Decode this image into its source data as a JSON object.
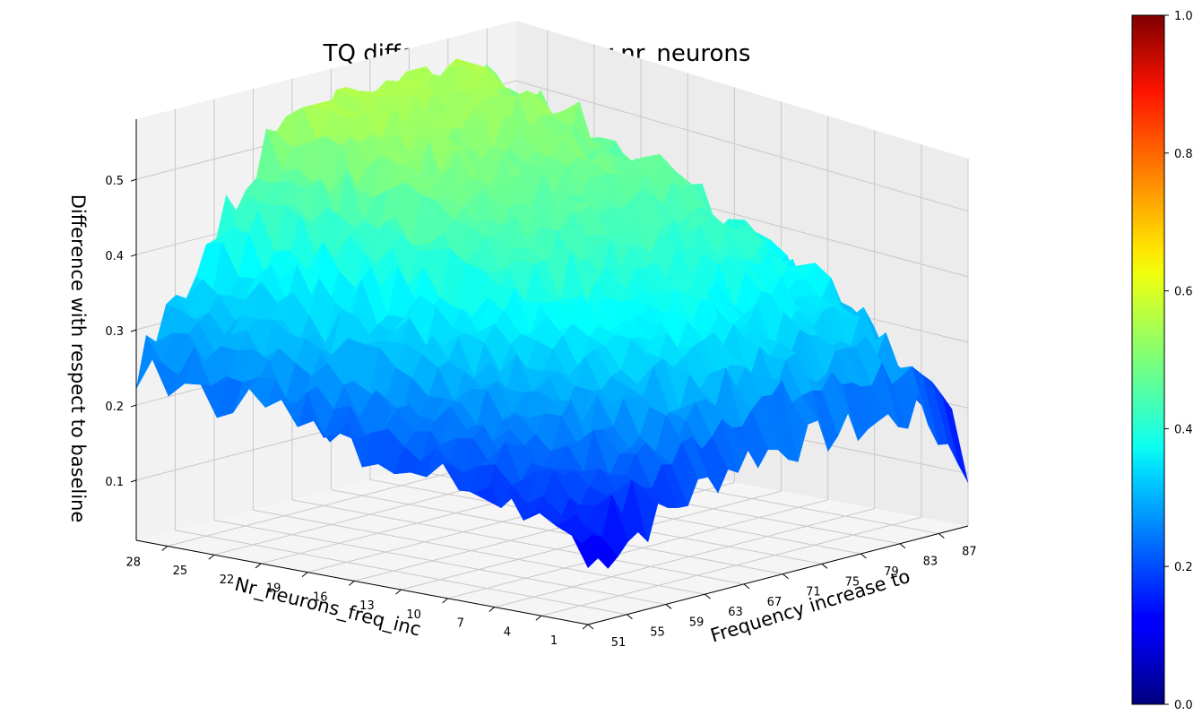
{
  "chart_data": {
    "type": "surface",
    "title": "TQ difference mean over nr_neurons",
    "xlabel": "Frequency increase to",
    "ylabel": "Nr_neurons_freq_inc",
    "zlabel": "Difference with respect to baseline",
    "colormap": "jet",
    "x_ticks": [
      "51",
      "55",
      "59",
      "63",
      "67",
      "71",
      "75",
      "79",
      "83",
      "87"
    ],
    "y_ticks": [
      "28",
      "25",
      "22",
      "19",
      "16",
      "13",
      "10",
      "7",
      "4",
      "1"
    ],
    "z_ticks": [
      "0.1",
      "0.2",
      "0.3",
      "0.4",
      "0.5"
    ],
    "colorbar_ticks": [
      "0.0",
      "0.2",
      "0.4",
      "0.6",
      "0.8",
      "1.0"
    ],
    "colorbar_range": [
      0.0,
      1.0
    ],
    "x_range": [
      51,
      90
    ],
    "y_range": [
      1,
      30
    ],
    "zlim": [
      0.02,
      0.58
    ],
    "grid": true,
    "surface_profile": {
      "description": "difference rises with frequency from about 0.03 at 51 to a plateau near 0.5 around 70-88, with slight drop near edges; rises with nr_neurons from ~0.05 at 1 to ~0.35 at 30",
      "x_plateau_center": 78,
      "peak_value": 0.55,
      "min_value": 0.03
    }
  }
}
